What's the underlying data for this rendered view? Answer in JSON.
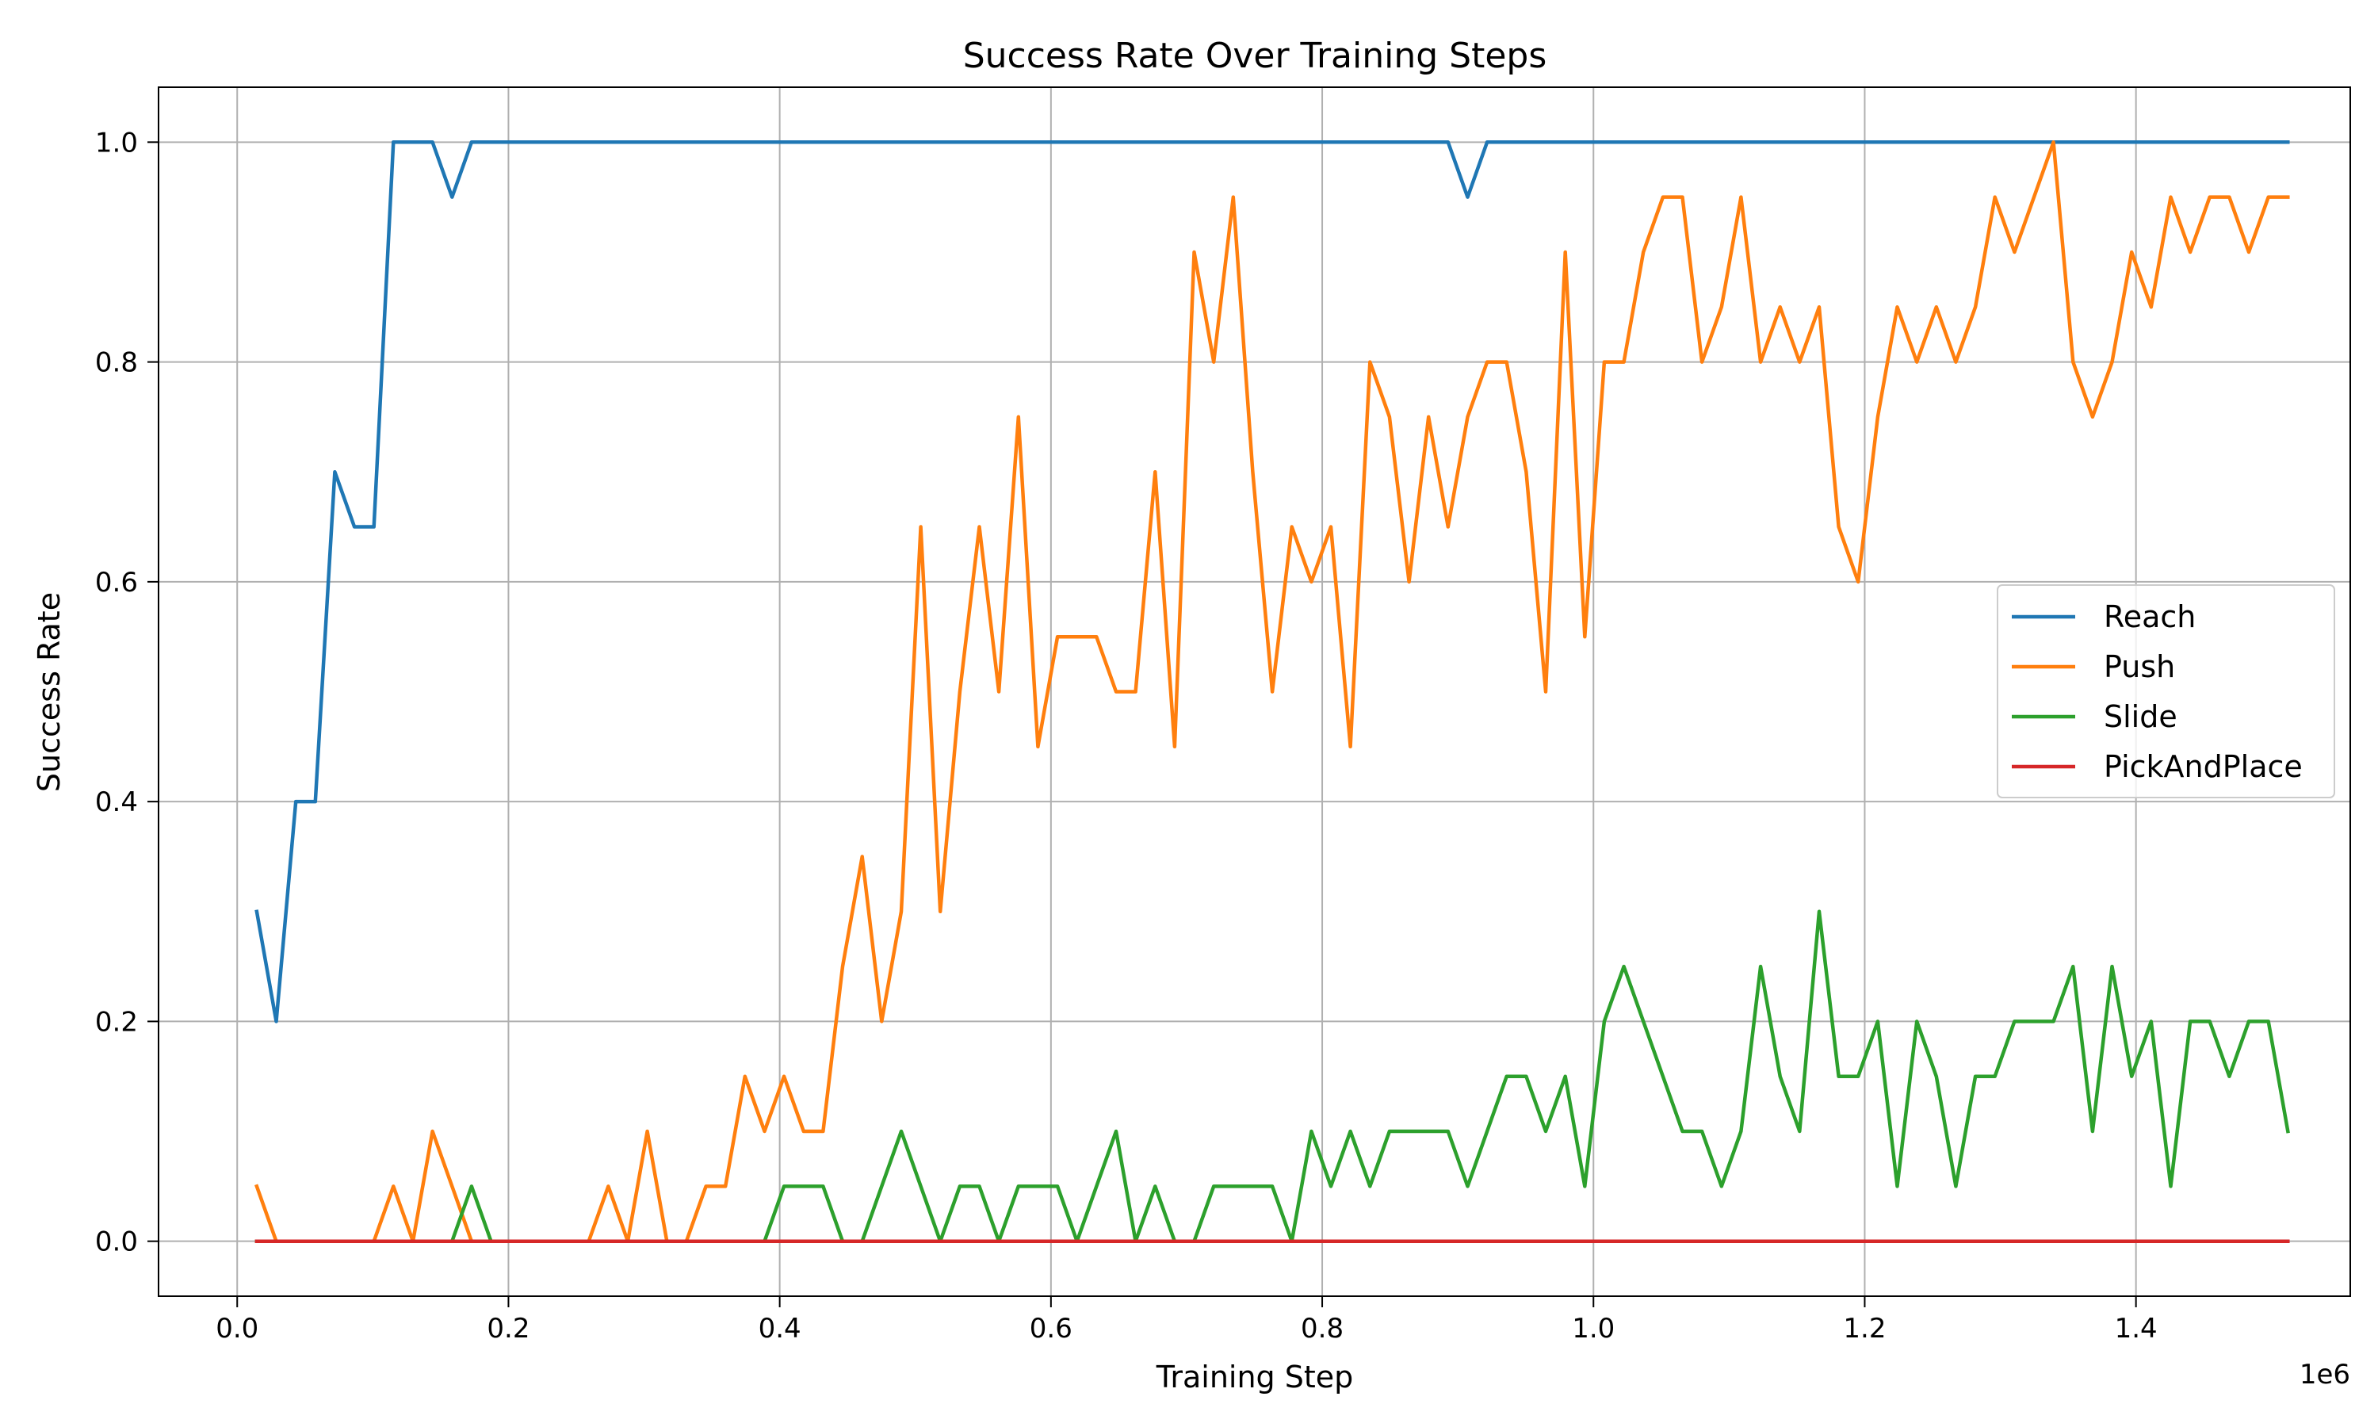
{
  "chart_data": {
    "type": "line",
    "title": "Success Rate Over Training Steps",
    "xlabel": "Training Step",
    "ylabel": "Success Rate",
    "x_offset_text": "1e6",
    "xlim": [
      -0.058,
      1.558
    ],
    "ylim": [
      -0.05,
      1.05
    ],
    "x_scale_factor": 1000000,
    "xticks": [
      0.0,
      0.2,
      0.4,
      0.6,
      0.8,
      1.0,
      1.2,
      1.4
    ],
    "xtick_labels": [
      "0.0",
      "0.2",
      "0.4",
      "0.6",
      "0.8",
      "1.0",
      "1.2",
      "1.4"
    ],
    "yticks": [
      0.0,
      0.2,
      0.4,
      0.6,
      0.8,
      1.0
    ],
    "ytick_labels": [
      "0.0",
      "0.2",
      "0.4",
      "0.6",
      "0.8",
      "1.0"
    ],
    "grid": true,
    "legend_position": "center-right",
    "x": [
      0.0144,
      0.0288,
      0.0432,
      0.0576,
      0.072,
      0.0864,
      0.1008,
      0.1152,
      0.1296,
      0.144,
      0.1584,
      0.1728,
      0.1872,
      0.2016,
      0.216,
      0.2304,
      0.2448,
      0.2592,
      0.2736,
      0.288,
      0.3024,
      0.3168,
      0.3312,
      0.3456,
      0.36,
      0.3744,
      0.3888,
      0.4032,
      0.4176,
      0.432,
      0.4464,
      0.4608,
      0.4752,
      0.4896,
      0.504,
      0.5184,
      0.5328,
      0.5472,
      0.5616,
      0.576,
      0.5904,
      0.6048,
      0.6192,
      0.6336,
      0.648,
      0.6624,
      0.6768,
      0.6912,
      0.7056,
      0.72,
      0.7344,
      0.7488,
      0.7632,
      0.7776,
      0.792,
      0.8064,
      0.8208,
      0.8352,
      0.8496,
      0.864,
      0.8784,
      0.8928,
      0.9072,
      0.9216,
      0.936,
      0.9504,
      0.9648,
      0.9792,
      0.9936,
      1.008,
      1.0224,
      1.0368,
      1.0512,
      1.0656,
      1.08,
      1.0944,
      1.1088,
      1.1232,
      1.1376,
      1.152,
      1.1664,
      1.1808,
      1.1952,
      1.2096,
      1.224,
      1.2384,
      1.2528,
      1.2672,
      1.2816,
      1.296,
      1.3104,
      1.3248,
      1.3392,
      1.3536,
      1.368,
      1.3824,
      1.3968,
      1.4112,
      1.4256,
      1.44,
      1.4544,
      1.4688,
      1.4832,
      1.4976,
      1.512
    ],
    "series": [
      {
        "name": "Reach",
        "color": "#1f77b4",
        "values": [
          0.3,
          0.2,
          0.4,
          0.4,
          0.7,
          0.65,
          0.65,
          1.0,
          1.0,
          1.0,
          0.95,
          1.0,
          1.0,
          1.0,
          1.0,
          1.0,
          1.0,
          1.0,
          1.0,
          1.0,
          1.0,
          1.0,
          1.0,
          1.0,
          1.0,
          1.0,
          1.0,
          1.0,
          1.0,
          1.0,
          1.0,
          1.0,
          1.0,
          1.0,
          1.0,
          1.0,
          1.0,
          1.0,
          1.0,
          1.0,
          1.0,
          1.0,
          1.0,
          1.0,
          1.0,
          1.0,
          1.0,
          1.0,
          1.0,
          1.0,
          1.0,
          1.0,
          1.0,
          1.0,
          1.0,
          1.0,
          1.0,
          1.0,
          1.0,
          1.0,
          1.0,
          1.0,
          0.95,
          1.0,
          1.0,
          1.0,
          1.0,
          1.0,
          1.0,
          1.0,
          1.0,
          1.0,
          1.0,
          1.0,
          1.0,
          1.0,
          1.0,
          1.0,
          1.0,
          1.0,
          1.0,
          1.0,
          1.0,
          1.0,
          1.0,
          1.0,
          1.0,
          1.0,
          1.0,
          1.0,
          1.0,
          1.0,
          1.0,
          1.0,
          1.0,
          1.0,
          1.0,
          1.0,
          1.0,
          1.0,
          1.0,
          1.0,
          1.0,
          1.0,
          1.0
        ]
      },
      {
        "name": "Push",
        "color": "#ff7f0e",
        "values": [
          0.05,
          0.0,
          0.0,
          0.0,
          0.0,
          0.0,
          0.0,
          0.05,
          0.0,
          0.1,
          0.05,
          0.0,
          0.0,
          0.0,
          0.0,
          0.0,
          0.0,
          0.0,
          0.05,
          0.0,
          0.1,
          0.0,
          0.0,
          0.05,
          0.05,
          0.15,
          0.1,
          0.15,
          0.1,
          0.1,
          0.25,
          0.35,
          0.2,
          0.3,
          0.65,
          0.3,
          0.5,
          0.65,
          0.5,
          0.75,
          0.45,
          0.55,
          0.55,
          0.55,
          0.5,
          0.5,
          0.7,
          0.45,
          0.9,
          0.8,
          0.95,
          0.7,
          0.5,
          0.65,
          0.6,
          0.65,
          0.45,
          0.8,
          0.75,
          0.6,
          0.75,
          0.65,
          0.75,
          0.8,
          0.8,
          0.7,
          0.5,
          0.9,
          0.55,
          0.8,
          0.8,
          0.9,
          0.95,
          0.95,
          0.8,
          0.85,
          0.95,
          0.8,
          0.85,
          0.8,
          0.85,
          0.65,
          0.6,
          0.75,
          0.85,
          0.8,
          0.85,
          0.8,
          0.85,
          0.95,
          0.9,
          0.95,
          1.0,
          0.8,
          0.75,
          0.8,
          0.9,
          0.85,
          0.95,
          0.9,
          0.95,
          0.95,
          0.9,
          0.95,
          0.95
        ]
      },
      {
        "name": "Slide",
        "color": "#2ca02c",
        "values": [
          0.0,
          0.0,
          0.0,
          0.0,
          0.0,
          0.0,
          0.0,
          0.0,
          0.0,
          0.0,
          0.0,
          0.05,
          0.0,
          0.0,
          0.0,
          0.0,
          0.0,
          0.0,
          0.0,
          0.0,
          0.0,
          0.0,
          0.0,
          0.0,
          0.0,
          0.0,
          0.0,
          0.05,
          0.05,
          0.05,
          0.0,
          0.0,
          0.05,
          0.1,
          0.05,
          0.0,
          0.05,
          0.05,
          0.0,
          0.05,
          0.05,
          0.05,
          0.0,
          0.05,
          0.1,
          0.0,
          0.05,
          0.0,
          0.0,
          0.05,
          0.05,
          0.05,
          0.05,
          0.0,
          0.1,
          0.05,
          0.1,
          0.05,
          0.1,
          0.1,
          0.1,
          0.1,
          0.05,
          0.1,
          0.15,
          0.15,
          0.1,
          0.15,
          0.05,
          0.2,
          0.25,
          0.2,
          0.15,
          0.1,
          0.1,
          0.05,
          0.1,
          0.25,
          0.15,
          0.1,
          0.3,
          0.15,
          0.15,
          0.2,
          0.05,
          0.2,
          0.15,
          0.05,
          0.15,
          0.15,
          0.2,
          0.2,
          0.2,
          0.25,
          0.1,
          0.25,
          0.15,
          0.2,
          0.05,
          0.2,
          0.2,
          0.15,
          0.2,
          0.2,
          0.1
        ]
      },
      {
        "name": "PickAndPlace",
        "color": "#d62728",
        "values": [
          0.0,
          0.0,
          0.0,
          0.0,
          0.0,
          0.0,
          0.0,
          0.0,
          0.0,
          0.0,
          0.0,
          0.0,
          0.0,
          0.0,
          0.0,
          0.0,
          0.0,
          0.0,
          0.0,
          0.0,
          0.0,
          0.0,
          0.0,
          0.0,
          0.0,
          0.0,
          0.0,
          0.0,
          0.0,
          0.0,
          0.0,
          0.0,
          0.0,
          0.0,
          0.0,
          0.0,
          0.0,
          0.0,
          0.0,
          0.0,
          0.0,
          0.0,
          0.0,
          0.0,
          0.0,
          0.0,
          0.0,
          0.0,
          0.0,
          0.0,
          0.0,
          0.0,
          0.0,
          0.0,
          0.0,
          0.0,
          0.0,
          0.0,
          0.0,
          0.0,
          0.0,
          0.0,
          0.0,
          0.0,
          0.0,
          0.0,
          0.0,
          0.0,
          0.0,
          0.0,
          0.0,
          0.0,
          0.0,
          0.0,
          0.0,
          0.0,
          0.0,
          0.0,
          0.0,
          0.0,
          0.0,
          0.0,
          0.0,
          0.0,
          0.0,
          0.0,
          0.0,
          0.0,
          0.0,
          0.0,
          0.0,
          0.0,
          0.0,
          0.0,
          0.0,
          0.0,
          0.0,
          0.0,
          0.0,
          0.0,
          0.0,
          0.0,
          0.0,
          0.0,
          0.0
        ]
      }
    ]
  }
}
